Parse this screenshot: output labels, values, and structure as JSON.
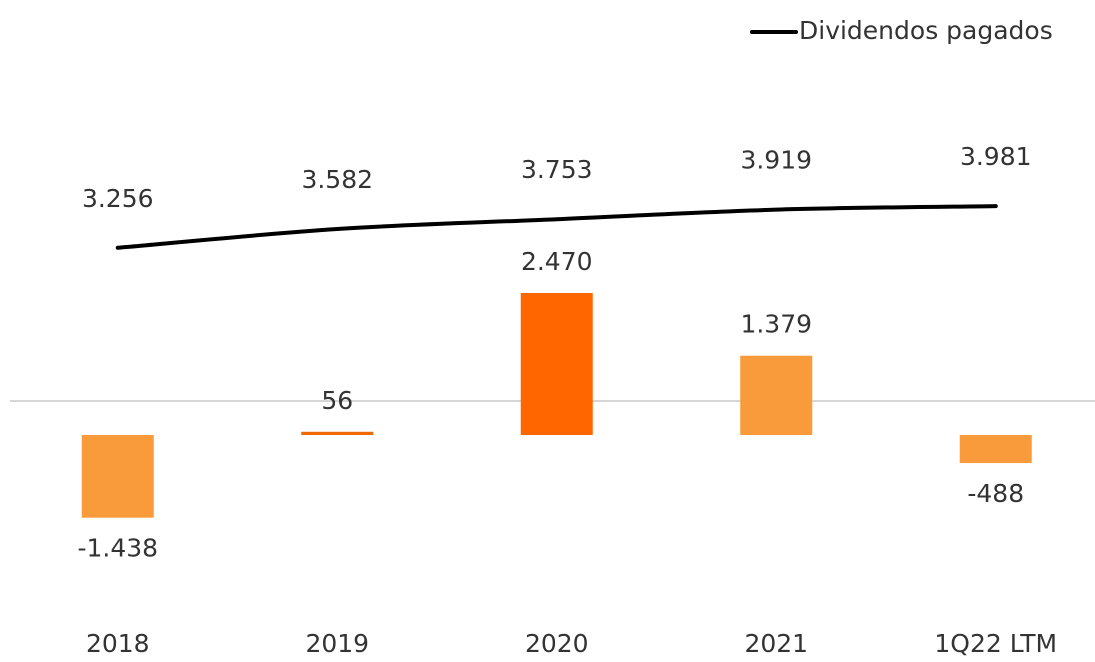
{
  "chart_data": {
    "type": "bar",
    "categories": [
      "2018",
      "2019",
      "2020",
      "2021",
      "1Q22 LTM"
    ],
    "series": [
      {
        "type": "bar",
        "colors": [
          "#f99b3a",
          "#f06800",
          "#ff6600",
          "#f99b3a",
          "#f99b3a"
        ],
        "values": [
          -1438,
          56,
          2470,
          1379,
          -488
        ],
        "value_labels": [
          "-1.438",
          "56",
          "2.470",
          "1.379",
          "-488"
        ]
      },
      {
        "type": "line",
        "name": "Dividendos pagados",
        "color": "#000000",
        "values": [
          3256,
          3582,
          3753,
          3919,
          3981
        ],
        "value_labels": [
          "3.256",
          "3.582",
          "3.753",
          "3.919",
          "3.981"
        ]
      }
    ],
    "ylim": [
      -2000,
      5000
    ],
    "legend": "top-right"
  }
}
